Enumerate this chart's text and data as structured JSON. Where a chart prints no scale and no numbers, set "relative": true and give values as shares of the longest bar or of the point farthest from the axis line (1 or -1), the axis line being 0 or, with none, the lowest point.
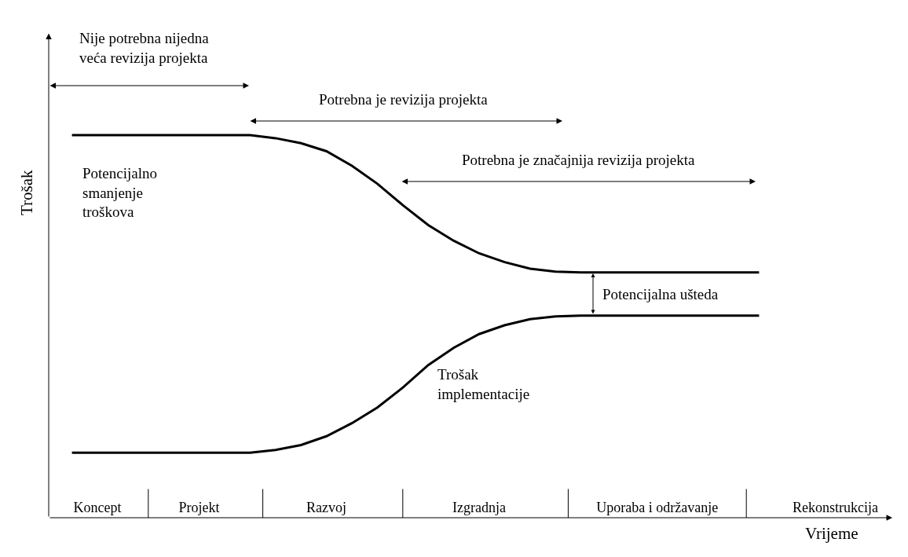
{
  "chart_data": {
    "type": "line",
    "relative": true,
    "xlabel": "Vrijeme",
    "ylabel": "Trošak",
    "legend": false,
    "marker": "none",
    "line_style": "solid",
    "categories": [
      null,
      "Koncept",
      null,
      null,
      null,
      "Projekt",
      null,
      null,
      null,
      null,
      "Razvoj",
      null,
      null,
      null,
      null,
      null,
      "Izgradnja",
      null,
      null,
      null,
      null,
      null,
      null,
      "Uporaba i održavanje",
      null,
      null,
      null,
      null,
      null,
      null,
      "Rekonstrukcija"
    ],
    "series": [
      {
        "name": "Potencijalno\nsmanjenje\ntroškova",
        "color": "#000000",
        "values": [
          1,
          1,
          1,
          1,
          1,
          1,
          1,
          1,
          0.992,
          0.979,
          0.958,
          0.92,
          0.873,
          0.817,
          0.765,
          0.724,
          0.691,
          0.668,
          0.651,
          0.643,
          0.641,
          0.641,
          0.641,
          0.641,
          0.641,
          0.641,
          0.641,
          0.641,
          null,
          null,
          null
        ]
      },
      {
        "name": "Trošak\nimplementacije",
        "color": "#000000",
        "values": [
          0.17,
          0.17,
          0.17,
          0.17,
          0.17,
          0.17,
          0.17,
          0.17,
          0.177,
          0.19,
          0.213,
          0.247,
          0.288,
          0.34,
          0.399,
          0.444,
          0.48,
          0.503,
          0.519,
          0.526,
          0.528,
          0.528,
          0.528,
          0.528,
          0.528,
          0.528,
          0.528,
          0.528,
          null,
          null,
          null
        ]
      }
    ],
    "annotations": [
      "Nije potrebna nijedna\nveća revizija projekta",
      "Potrebna je revizija projekta",
      "Potrebna je značajnija revizija projekta",
      "Potencijalna ušteda"
    ]
  }
}
